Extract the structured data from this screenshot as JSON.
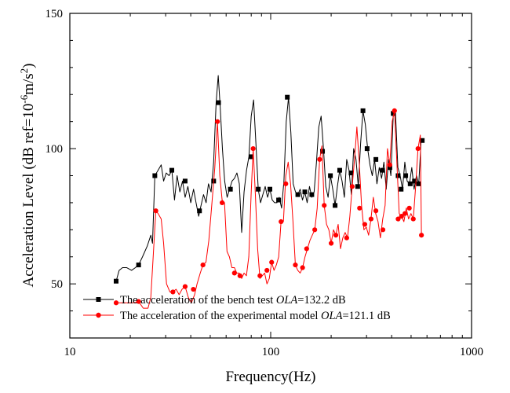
{
  "chart_data": {
    "type": "line",
    "x_scale": "log",
    "xlabel": "Frequency(Hz)",
    "ylabel": {
      "prefix": "Acceleration Level (dB ref=10",
      "exp1": "-6",
      "middle": "m/s",
      "exp2": "2",
      "suffix": ")"
    },
    "xlim": [
      10,
      1000
    ],
    "ylim": [
      30,
      150
    ],
    "x_ticks": [
      10,
      100,
      1000
    ],
    "x_tick_labels": [
      "10",
      "100",
      "1000"
    ],
    "y_ticks": [
      50,
      100,
      150
    ],
    "y_tick_labels": [
      "50",
      "100",
      "150"
    ],
    "grid": false,
    "legend_position": "bottom-left",
    "series": [
      {
        "legend": {
          "prefix": "The acceleration of the bench test ",
          "italic": "OLA",
          "suffix": "=132.2 dB"
        },
        "color": "#000000",
        "marker": "square",
        "points": [
          [
            17.0,
            51
          ],
          [
            17.6,
            55
          ],
          [
            18.3,
            56
          ],
          [
            19.2,
            56
          ],
          [
            20.3,
            55
          ],
          [
            21.2,
            56
          ],
          [
            22.0,
            57
          ],
          [
            23.0,
            60
          ],
          [
            24.3,
            64
          ],
          [
            25.3,
            68
          ],
          [
            25.8,
            65
          ],
          [
            26.5,
            90
          ],
          [
            27.5,
            92
          ],
          [
            28.5,
            94
          ],
          [
            29.3,
            88
          ],
          [
            30.2,
            91
          ],
          [
            31.2,
            90
          ],
          [
            32.2,
            92
          ],
          [
            33.2,
            81
          ],
          [
            34.2,
            90
          ],
          [
            35.3,
            84
          ],
          [
            36.4,
            88
          ],
          [
            37.5,
            82
          ],
          [
            38.7,
            86
          ],
          [
            40.0,
            80
          ],
          [
            41.3,
            85
          ],
          [
            42.5,
            80
          ],
          [
            43.8,
            75
          ],
          [
            45.0,
            79
          ],
          [
            46.3,
            83
          ],
          [
            47.7,
            80
          ],
          [
            49.0,
            87
          ],
          [
            50.5,
            84
          ],
          [
            52.0,
            95
          ],
          [
            53.5,
            117
          ],
          [
            54.8,
            127
          ],
          [
            56.0,
            116
          ],
          [
            57.5,
            100
          ],
          [
            59.0,
            88
          ],
          [
            60.7,
            82
          ],
          [
            62.4,
            85
          ],
          [
            64.2,
            88
          ],
          [
            66.0,
            89
          ],
          [
            67.9,
            91
          ],
          [
            69.8,
            87
          ],
          [
            71.7,
            69
          ],
          [
            73.7,
            84
          ],
          [
            75.8,
            92
          ],
          [
            77.9,
            97
          ],
          [
            80.0,
            112
          ],
          [
            82.2,
            118
          ],
          [
            84.4,
            102
          ],
          [
            86.7,
            85
          ],
          [
            89.0,
            80
          ],
          [
            91.4,
            83
          ],
          [
            93.9,
            86
          ],
          [
            96.5,
            82
          ],
          [
            99.1,
            85
          ],
          [
            101.8,
            81
          ],
          [
            104.6,
            80
          ],
          [
            107.4,
            80
          ],
          [
            110.3,
            82
          ],
          [
            113.3,
            78
          ],
          [
            116.4,
            88
          ],
          [
            119.5,
            110
          ],
          [
            122.7,
            119
          ],
          [
            126.0,
            106
          ],
          [
            129.4,
            87
          ],
          [
            132.9,
            84
          ],
          [
            136.5,
            83
          ],
          [
            140.2,
            85
          ],
          [
            144.0,
            81
          ],
          [
            147.9,
            84
          ],
          [
            151.9,
            80
          ],
          [
            156.0,
            86
          ],
          [
            160.2,
            82
          ],
          [
            164.5,
            84
          ],
          [
            169.0,
            95
          ],
          [
            173.6,
            108
          ],
          [
            178.3,
            112
          ],
          [
            183.1,
            100
          ],
          [
            188.0,
            86
          ],
          [
            193.1,
            82
          ],
          [
            198.3,
            90
          ],
          [
            203.7,
            85
          ],
          [
            209.2,
            79
          ],
          [
            214.8,
            86
          ],
          [
            220.6,
            92
          ],
          [
            226.6,
            88
          ],
          [
            232.7,
            82
          ],
          [
            239.0,
            96
          ],
          [
            245.5,
            92
          ],
          [
            252.1,
            83
          ],
          [
            258.9,
            100
          ],
          [
            265.9,
            96
          ],
          [
            273.0,
            86
          ],
          [
            280.4,
            102
          ],
          [
            288.0,
            114
          ],
          [
            295.8,
            109
          ],
          [
            303.8,
            100
          ],
          [
            312.0,
            94
          ],
          [
            320.4,
            90
          ],
          [
            329.1,
            96
          ],
          [
            338.0,
            87
          ],
          [
            347.1,
            93
          ],
          [
            356.5,
            89
          ],
          [
            366.1,
            95
          ],
          [
            376.0,
            85
          ],
          [
            386.2,
            96
          ],
          [
            396.6,
            90
          ],
          [
            407.3,
            112
          ],
          [
            418.3,
            113
          ],
          [
            429.6,
            93
          ],
          [
            441.2,
            90
          ],
          [
            453.1,
            85
          ],
          [
            465.4,
            95
          ],
          [
            477.9,
            88
          ],
          [
            490.8,
            87
          ],
          [
            504.1,
            93
          ],
          [
            517.7,
            85
          ],
          [
            531.7,
            90
          ],
          [
            546.1,
            87
          ],
          [
            560.8,
            103
          ]
        ],
        "marked_points": [
          [
            17.0,
            51
          ],
          [
            22.0,
            57
          ],
          [
            26.5,
            90
          ],
          [
            32.2,
            92
          ],
          [
            37.5,
            88
          ],
          [
            44.2,
            77
          ],
          [
            52.0,
            88
          ],
          [
            55.0,
            117
          ],
          [
            63.0,
            85
          ],
          [
            80.0,
            97
          ],
          [
            86.7,
            85
          ],
          [
            99.1,
            85
          ],
          [
            109.5,
            81
          ],
          [
            121.0,
            119
          ],
          [
            136.5,
            83
          ],
          [
            147.9,
            84
          ],
          [
            160.2,
            83
          ],
          [
            181.1,
            99
          ],
          [
            198.3,
            90
          ],
          [
            209.2,
            79
          ],
          [
            220.6,
            92
          ],
          [
            251.3,
            91
          ],
          [
            271.0,
            86
          ],
          [
            288.0,
            114
          ],
          [
            302.0,
            100
          ],
          [
            334.0,
            96
          ],
          [
            360.0,
            92
          ],
          [
            392.0,
            93
          ],
          [
            407.3,
            113
          ],
          [
            431.0,
            90
          ],
          [
            446.0,
            85
          ],
          [
            470.0,
            90
          ],
          [
            495.0,
            87
          ],
          [
            520.0,
            88
          ],
          [
            545.0,
            87
          ],
          [
            568.0,
            103
          ]
        ]
      },
      {
        "legend": {
          "prefix": "The acceleration of the experimental model ",
          "italic": "OLA",
          "suffix": "=121.1 dB"
        },
        "color": "#ff0000",
        "marker": "circle",
        "points": [
          [
            17.0,
            43
          ],
          [
            18.0,
            43
          ],
          [
            19.0,
            43
          ],
          [
            20.0,
            43
          ],
          [
            21.0,
            43
          ],
          [
            22.0,
            43.5
          ],
          [
            23.2,
            41
          ],
          [
            24.5,
            41
          ],
          [
            25.3,
            45
          ],
          [
            26.0,
            60
          ],
          [
            26.8,
            77
          ],
          [
            27.5,
            76
          ],
          [
            28.5,
            74
          ],
          [
            29.3,
            65
          ],
          [
            30.3,
            50
          ],
          [
            31.5,
            47
          ],
          [
            32.6,
            47
          ],
          [
            33.8,
            48
          ],
          [
            35.0,
            46
          ],
          [
            36.2,
            48
          ],
          [
            37.5,
            49
          ],
          [
            38.9,
            45
          ],
          [
            40.3,
            43
          ],
          [
            41.8,
            46
          ],
          [
            43.0,
            50
          ],
          [
            44.6,
            54
          ],
          [
            46.0,
            57
          ],
          [
            47.6,
            58
          ],
          [
            49.2,
            66
          ],
          [
            51.0,
            80
          ],
          [
            52.7,
            93
          ],
          [
            54.3,
            110
          ],
          [
            55.8,
            90
          ],
          [
            57.3,
            81
          ],
          [
            58.9,
            80
          ],
          [
            60.6,
            62
          ],
          [
            62.3,
            60
          ],
          [
            64.1,
            56
          ],
          [
            66.0,
            56
          ],
          [
            67.8,
            54
          ],
          [
            69.7,
            54
          ],
          [
            71.7,
            52
          ],
          [
            73.7,
            54
          ],
          [
            75.7,
            53
          ],
          [
            77.8,
            60
          ],
          [
            79.9,
            83
          ],
          [
            81.8,
            100
          ],
          [
            83.9,
            83
          ],
          [
            86.1,
            63
          ],
          [
            88.4,
            52
          ],
          [
            90.8,
            53
          ],
          [
            93.3,
            54
          ],
          [
            95.8,
            50
          ],
          [
            98.4,
            52
          ],
          [
            101.1,
            58
          ],
          [
            103.9,
            55
          ],
          [
            106.7,
            57
          ],
          [
            109.6,
            60
          ],
          [
            112.6,
            73
          ],
          [
            115.7,
            73
          ],
          [
            118.9,
            90
          ],
          [
            122.2,
            95
          ],
          [
            125.6,
            87
          ],
          [
            129.1,
            73
          ],
          [
            132.7,
            57
          ],
          [
            136.4,
            55
          ],
          [
            140.2,
            54
          ],
          [
            144.1,
            56
          ],
          [
            148.2,
            60
          ],
          [
            152.4,
            63
          ],
          [
            156.7,
            66
          ],
          [
            161.1,
            68
          ],
          [
            165.7,
            70
          ],
          [
            170.4,
            78
          ],
          [
            175.2,
            96
          ],
          [
            179.9,
            101
          ],
          [
            184.7,
            79
          ],
          [
            189.7,
            72
          ],
          [
            194.8,
            70
          ],
          [
            200.0,
            65
          ],
          [
            205.4,
            70
          ],
          [
            211.0,
            68
          ],
          [
            216.7,
            72
          ],
          [
            222.6,
            63
          ],
          [
            228.6,
            67
          ],
          [
            234.8,
            69
          ],
          [
            241.2,
            67
          ],
          [
            247.8,
            75
          ],
          [
            254.5,
            86
          ],
          [
            261.4,
            96
          ],
          [
            268.6,
            108
          ],
          [
            275.9,
            95
          ],
          [
            283.4,
            79
          ],
          [
            291.2,
            70
          ],
          [
            299.1,
            71
          ],
          [
            307.3,
            68
          ],
          [
            315.7,
            74
          ],
          [
            324.3,
            82
          ],
          [
            333.2,
            76
          ],
          [
            342.3,
            73
          ],
          [
            351.7,
            67
          ],
          [
            361.3,
            74
          ],
          [
            371.2,
            79
          ],
          [
            381.4,
            100
          ],
          [
            391.8,
            94
          ],
          [
            402.5,
            110
          ],
          [
            413.4,
            114
          ],
          [
            424.7,
            95
          ],
          [
            436.3,
            76
          ],
          [
            448.2,
            75
          ],
          [
            460.4,
            73
          ],
          [
            473.0,
            78
          ],
          [
            485.9,
            74
          ],
          [
            499.2,
            76
          ],
          [
            512.8,
            74
          ],
          [
            526.8,
            86
          ],
          [
            541.2,
            100
          ],
          [
            555.9,
            105
          ],
          [
            563.0,
            68
          ]
        ],
        "marked_points": [
          [
            17.0,
            43
          ],
          [
            22.0,
            43.5
          ],
          [
            26.8,
            77
          ],
          [
            32.6,
            47
          ],
          [
            37.5,
            49
          ],
          [
            41.2,
            48
          ],
          [
            46.0,
            57
          ],
          [
            54.3,
            110
          ],
          [
            57.3,
            80
          ],
          [
            66.0,
            54
          ],
          [
            70.3,
            53
          ],
          [
            81.8,
            100
          ],
          [
            88.4,
            53
          ],
          [
            95.8,
            55
          ],
          [
            101.1,
            58
          ],
          [
            112.6,
            73
          ],
          [
            118.9,
            87
          ],
          [
            132.7,
            57
          ],
          [
            144.1,
            56
          ],
          [
            151.0,
            63
          ],
          [
            165.7,
            70
          ],
          [
            175.2,
            96
          ],
          [
            184.7,
            79
          ],
          [
            200.0,
            65
          ],
          [
            211.0,
            68
          ],
          [
            239.0,
            67
          ],
          [
            254.5,
            86
          ],
          [
            277.0,
            78
          ],
          [
            294.0,
            72
          ],
          [
            316.0,
            74
          ],
          [
            334.0,
            77
          ],
          [
            362.0,
            70
          ],
          [
            391.8,
            94
          ],
          [
            413.4,
            114
          ],
          [
            431.0,
            74
          ],
          [
            448.2,
            75
          ],
          [
            466.0,
            76
          ],
          [
            490.0,
            78
          ],
          [
            512.8,
            74
          ],
          [
            541.2,
            100
          ],
          [
            563.0,
            68
          ]
        ]
      }
    ]
  }
}
